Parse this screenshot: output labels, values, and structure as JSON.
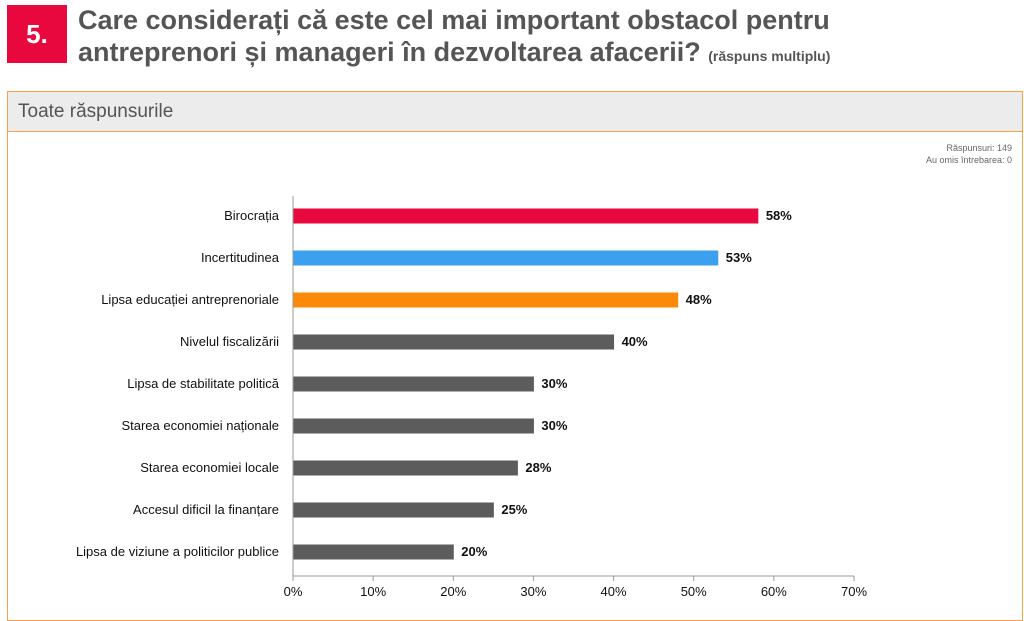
{
  "header": {
    "number": "5.",
    "question_line1": "Care considerați că este cel mai important obstacol pentru",
    "question_line2": "antreprenori și manageri în dezvoltarea afacerii?",
    "question_note": "(răspuns multiplu)"
  },
  "panel": {
    "title": "Toate răspunsurile",
    "responses": "Răspunsuri: 149",
    "skipped": "Au omis întrebarea: 0"
  },
  "colors": {
    "accent_red": "#e8083e",
    "blue": "#3ba1ef",
    "orange": "#fb8a0b",
    "gray": "#5c5c5c",
    "panel_border": "#f7a24a"
  },
  "chart_data": {
    "type": "bar",
    "orientation": "horizontal",
    "categories": [
      "Birocrația",
      "Incertitudinea",
      "Lipsa educației antreprenoriale",
      "Nivelul fiscalizării",
      "Lipsa de stabilitate politică",
      "Starea economiei naționale",
      "Starea economiei locale",
      "Accesul dificil la finanțare",
      "Lipsa de viziune a politicilor publice"
    ],
    "values": [
      58,
      53,
      48,
      40,
      30,
      30,
      28,
      25,
      20
    ],
    "value_labels": [
      "58%",
      "53%",
      "48%",
      "40%",
      "30%",
      "30%",
      "28%",
      "25%",
      "20%"
    ],
    "bar_colors": [
      "#e8083e",
      "#3ba1ef",
      "#fb8a0b",
      "#5c5c5c",
      "#5c5c5c",
      "#5c5c5c",
      "#5c5c5c",
      "#5c5c5c",
      "#5c5c5c"
    ],
    "xlim": [
      0,
      70
    ],
    "xticks": [
      0,
      10,
      20,
      30,
      40,
      50,
      60,
      70
    ],
    "xtick_labels": [
      "0%",
      "10%",
      "20%",
      "30%",
      "40%",
      "50%",
      "60%",
      "70%"
    ],
    "grid": false
  }
}
